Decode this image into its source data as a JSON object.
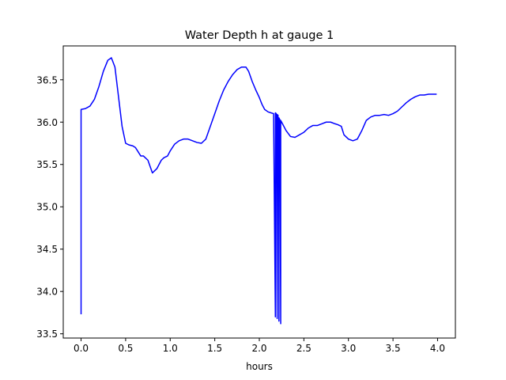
{
  "chart_data": {
    "type": "line",
    "title": "Water Depth h at gauge 1",
    "xlabel": "hours",
    "ylabel": "",
    "xlim": [
      -0.2,
      4.2
    ],
    "ylim": [
      33.45,
      36.9
    ],
    "xticks": [
      0.0,
      0.5,
      1.0,
      1.5,
      2.0,
      2.5,
      3.0,
      3.5,
      4.0
    ],
    "xtick_labels": [
      "0.0",
      "0.5",
      "1.0",
      "1.5",
      "2.0",
      "2.5",
      "3.0",
      "3.5",
      "4.0"
    ],
    "yticks": [
      33.5,
      34.0,
      34.5,
      35.0,
      35.5,
      36.0,
      36.5
    ],
    "ytick_labels": [
      "33.5",
      "34.0",
      "34.5",
      "35.0",
      "35.5",
      "36.0",
      "36.5"
    ],
    "grid": false,
    "legend": "none",
    "series": [
      {
        "color": "#0000ff",
        "x": [
          0.0,
          0.0,
          0.05,
          0.1,
          0.15,
          0.2,
          0.25,
          0.3,
          0.34,
          0.38,
          0.42,
          0.46,
          0.5,
          0.54,
          0.58,
          0.61,
          0.64,
          0.67,
          0.7,
          0.75,
          0.8,
          0.85,
          0.9,
          0.93,
          0.97,
          1.0,
          1.05,
          1.1,
          1.15,
          1.2,
          1.25,
          1.3,
          1.35,
          1.4,
          1.45,
          1.5,
          1.55,
          1.6,
          1.65,
          1.7,
          1.75,
          1.8,
          1.85,
          1.88,
          1.92,
          1.96,
          2.0,
          2.03,
          2.06,
          2.1,
          2.13,
          2.16,
          2.18,
          2.18,
          2.19,
          2.2,
          2.2,
          2.21,
          2.22,
          2.22,
          2.23,
          2.24,
          2.24,
          2.25,
          2.26,
          2.3,
          2.35,
          2.4,
          2.45,
          2.5,
          2.55,
          2.6,
          2.65,
          2.7,
          2.75,
          2.8,
          2.85,
          2.88,
          2.92,
          2.95,
          3.0,
          3.05,
          3.1,
          3.15,
          3.2,
          3.25,
          3.3,
          3.35,
          3.4,
          3.45,
          3.5,
          3.55,
          3.6,
          3.65,
          3.7,
          3.75,
          3.8,
          3.85,
          3.9,
          3.95,
          3.99
        ],
        "y": [
          33.73,
          36.15,
          36.16,
          36.19,
          36.27,
          36.42,
          36.6,
          36.73,
          36.76,
          36.65,
          36.3,
          35.95,
          35.75,
          35.73,
          35.72,
          35.7,
          35.65,
          35.6,
          35.6,
          35.55,
          35.4,
          35.45,
          35.55,
          35.58,
          35.6,
          35.66,
          35.74,
          35.78,
          35.8,
          35.8,
          35.78,
          35.76,
          35.75,
          35.8,
          35.95,
          36.1,
          36.25,
          36.38,
          36.48,
          36.56,
          36.62,
          36.65,
          36.65,
          36.6,
          36.48,
          36.38,
          36.29,
          36.21,
          36.15,
          36.12,
          36.11,
          36.1,
          33.7,
          36.11,
          36.1,
          33.68,
          36.09,
          36.08,
          33.65,
          36.05,
          36.03,
          33.62,
          36.02,
          36.0,
          35.98,
          35.9,
          35.83,
          35.82,
          35.85,
          35.88,
          35.93,
          35.96,
          35.96,
          35.98,
          36.0,
          36.0,
          35.98,
          35.97,
          35.95,
          35.85,
          35.8,
          35.78,
          35.8,
          35.9,
          36.02,
          36.06,
          36.08,
          36.08,
          36.09,
          36.08,
          36.1,
          36.13,
          36.18,
          36.23,
          36.27,
          36.3,
          36.32,
          36.32,
          36.33,
          36.33,
          36.33
        ]
      }
    ]
  }
}
